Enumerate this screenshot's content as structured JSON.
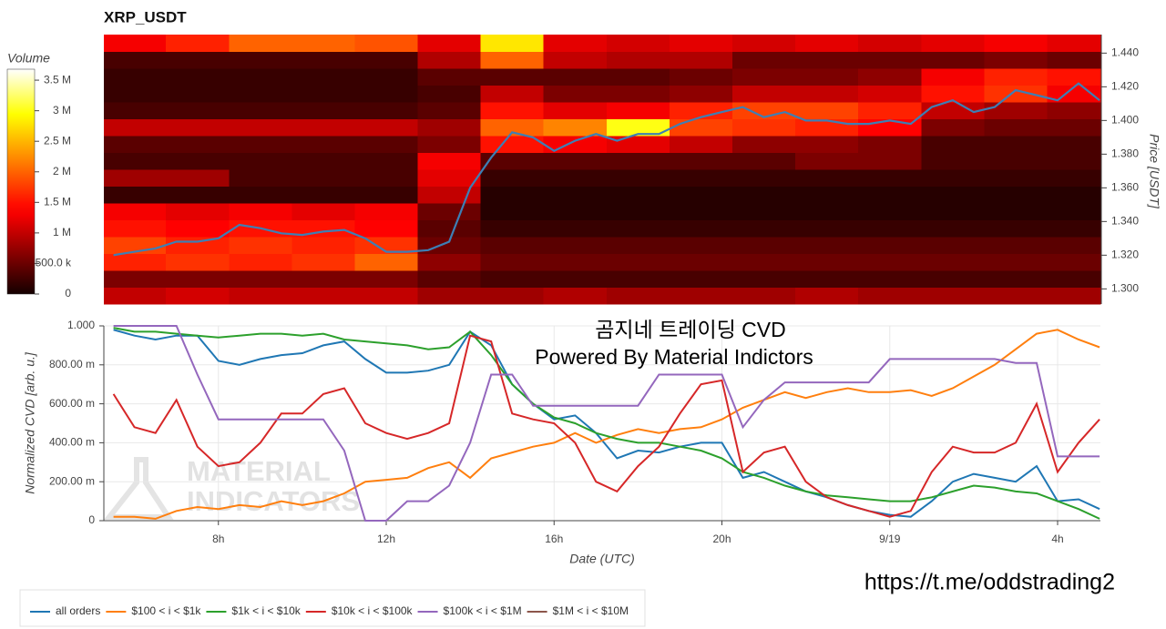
{
  "chart_data": [
    {
      "type": "heatmap",
      "title": "XRP_USDT",
      "ylabel": "Price [USDT]",
      "colormap": "hot",
      "x": [
        6,
        7.5,
        9,
        10.5,
        12,
        13.5,
        15,
        16.5,
        18,
        19.5,
        21,
        22.5,
        24,
        25.5,
        27,
        28.5
      ],
      "y": [
        1.296,
        1.306,
        1.316,
        1.326,
        1.336,
        1.346,
        1.356,
        1.366,
        1.376,
        1.386,
        1.396,
        1.406,
        1.416,
        1.426,
        1.436,
        1.446
      ],
      "z": [
        [
          1000000.0,
          1100000.0,
          1000000.0,
          1000000.0,
          1000000.0,
          800000.0,
          800000.0,
          900000.0,
          800000.0,
          800000.0,
          800000.0,
          900000.0,
          800000.0,
          800000.0,
          800000.0,
          800000.0
        ],
        [
          600000.0,
          600000.0,
          600000.0,
          600000.0,
          600000.0,
          400000.0,
          300000.0,
          300000.0,
          300000.0,
          300000.0,
          300000.0,
          300000.0,
          300000.0,
          300000.0,
          300000.0,
          300000.0
        ],
        [
          1600000.0,
          1700000.0,
          1600000.0,
          1700000.0,
          2000000.0,
          700000.0,
          500000.0,
          500000.0,
          500000.0,
          500000.0,
          500000.0,
          500000.0,
          500000.0,
          500000.0,
          500000.0,
          500000.0
        ],
        [
          1800000.0,
          1600000.0,
          1700000.0,
          1600000.0,
          1700000.0,
          500000.0,
          400000.0,
          400000.0,
          400000.0,
          400000.0,
          400000.0,
          400000.0,
          400000.0,
          400000.0,
          400000.0,
          400000.0
        ],
        [
          1500000.0,
          1400000.0,
          1500000.0,
          1500000.0,
          1400000.0,
          400000.0,
          200000.0,
          200000.0,
          200000.0,
          200000.0,
          200000.0,
          200000.0,
          200000.0,
          200000.0,
          200000.0,
          200000.0
        ],
        [
          1300000.0,
          1200000.0,
          1300000.0,
          1200000.0,
          1300000.0,
          500000.0,
          100000.0,
          100000.0,
          100000.0,
          100000.0,
          100000.0,
          100000.0,
          100000.0,
          100000.0,
          100000.0,
          100000.0
        ],
        [
          200000.0,
          200000.0,
          200000.0,
          200000.0,
          200000.0,
          1000000.0,
          100000.0,
          100000.0,
          100000.0,
          100000.0,
          100000.0,
          100000.0,
          100000.0,
          100000.0,
          100000.0,
          100000.0
        ],
        [
          800000.0,
          800000.0,
          300000.0,
          300000.0,
          300000.0,
          1200000.0,
          200000.0,
          200000.0,
          200000.0,
          200000.0,
          200000.0,
          200000.0,
          200000.0,
          200000.0,
          200000.0,
          200000.0
        ],
        [
          300000.0,
          300000.0,
          300000.0,
          300000.0,
          300000.0,
          1300000.0,
          400000.0,
          400000.0,
          400000.0,
          400000.0,
          400000.0,
          600000.0,
          600000.0,
          300000.0,
          300000.0,
          300000.0
        ],
        [
          400000.0,
          400000.0,
          400000.0,
          400000.0,
          400000.0,
          600000.0,
          1500000.0,
          1300000.0,
          1200000.0,
          1000000.0,
          700000.0,
          700000.0,
          600000.0,
          300000.0,
          300000.0,
          300000.0
        ],
        [
          1000000.0,
          1000000.0,
          1000000.0,
          1000000.0,
          1000000.0,
          800000.0,
          2000000.0,
          2200000.0,
          3000000.0,
          1800000.0,
          1700000.0,
          1600000.0,
          1400000.0,
          600000.0,
          500000.0,
          500000.0
        ],
        [
          300000.0,
          300000.0,
          300000.0,
          300000.0,
          300000.0,
          400000.0,
          1500000.0,
          1200000.0,
          1300000.0,
          1600000.0,
          1800000.0,
          1800000.0,
          1600000.0,
          1000000.0,
          800000.0,
          700000.0
        ],
        [
          200000.0,
          200000.0,
          200000.0,
          200000.0,
          200000.0,
          300000.0,
          1000000.0,
          600000.0,
          600000.0,
          700000.0,
          1000000.0,
          1000000.0,
          1100000.0,
          1500000.0,
          1700000.0,
          1300000.0
        ],
        [
          200000.0,
          200000.0,
          200000.0,
          200000.0,
          200000.0,
          400000.0,
          400000.0,
          400000.0,
          400000.0,
          500000.0,
          600000.0,
          600000.0,
          700000.0,
          1300000.0,
          1600000.0,
          1500000.0
        ],
        [
          300000.0,
          300000.0,
          300000.0,
          300000.0,
          300000.0,
          900000.0,
          2000000.0,
          1000000.0,
          900000.0,
          900000.0,
          500000.0,
          500000.0,
          500000.0,
          500000.0,
          600000.0,
          500000.0
        ],
        [
          1300000.0,
          1600000.0,
          2000000.0,
          2000000.0,
          1900000.0,
          1200000.0,
          2800000.0,
          1200000.0,
          1100000.0,
          1200000.0,
          1100000.0,
          1200000.0,
          1100000.0,
          1200000.0,
          1300000.0,
          1200000.0
        ]
      ],
      "xlim": [
        5.27,
        29.02
      ],
      "ylim": [
        1.291,
        1.451
      ],
      "yticks": [
        {
          "value": 1.3,
          "label": "1.300"
        },
        {
          "value": 1.32,
          "label": "1.320"
        },
        {
          "value": 1.34,
          "label": "1.340"
        },
        {
          "value": 1.36,
          "label": "1.360"
        },
        {
          "value": 1.38,
          "label": "1.380"
        },
        {
          "value": 1.4,
          "label": "1.400"
        },
        {
          "value": 1.42,
          "label": "1.420"
        },
        {
          "value": 1.44,
          "label": "1.440"
        }
      ],
      "colorbar": {
        "label": "Volume",
        "zlim": [
          0,
          3680000
        ],
        "ticks": [
          0,
          {
            "value": 500000,
            "label": "500.0 k"
          },
          {
            "value": 1000000,
            "label": "1 M"
          },
          {
            "value": 1500000,
            "label": "1.5 M"
          },
          {
            "value": 2000000,
            "label": "2 M"
          },
          {
            "value": 2500000,
            "label": "2.5 M"
          },
          {
            "value": 3000000,
            "label": "3 M"
          },
          {
            "value": 3500000,
            "label": "3.5 M"
          }
        ]
      },
      "line": {
        "color": "#3d7fb5",
        "x": [
          5.5,
          6,
          6.5,
          7,
          7.5,
          8,
          8.5,
          9,
          9.5,
          10,
          10.5,
          11,
          11.5,
          12,
          12.5,
          13,
          13.5,
          14,
          14.5,
          15,
          15.5,
          16,
          16.5,
          17,
          17.5,
          18,
          18.5,
          19,
          19.5,
          20,
          20.5,
          21,
          21.5,
          22,
          22.5,
          23,
          23.5,
          24,
          24.5,
          25,
          25.5,
          26,
          26.5,
          27,
          27.5,
          28,
          28.5,
          29
        ],
        "values": [
          1.32,
          1.322,
          1.324,
          1.328,
          1.328,
          1.33,
          1.338,
          1.336,
          1.333,
          1.332,
          1.334,
          1.335,
          1.33,
          1.322,
          1.322,
          1.323,
          1.328,
          1.36,
          1.378,
          1.393,
          1.39,
          1.382,
          1.388,
          1.392,
          1.388,
          1.392,
          1.392,
          1.398,
          1.402,
          1.405,
          1.408,
          1.402,
          1.405,
          1.4,
          1.4,
          1.398,
          1.398,
          1.4,
          1.398,
          1.408,
          1.412,
          1.405,
          1.408,
          1.418,
          1.415,
          1.412,
          1.422,
          1.412
        ]
      }
    },
    {
      "type": "line",
      "xlabel": "Date (UTC)",
      "ylabel": "Normalized CVD [arb. u.]",
      "grid": true,
      "legend": "bottom",
      "annotations": [
        "곰지네 트레이딩 CVD",
        "Powered By Material Indictors"
      ],
      "x": [
        5.5,
        6,
        6.5,
        7,
        7.5,
        8,
        8.5,
        9,
        9.5,
        10,
        10.5,
        11,
        11.5,
        12,
        12.5,
        13,
        13.5,
        14,
        14.5,
        15,
        15.5,
        16,
        16.5,
        17,
        17.5,
        18,
        18.5,
        19,
        19.5,
        20,
        20.5,
        21,
        21.5,
        22,
        22.5,
        23,
        23.5,
        24,
        24.5,
        25,
        25.5,
        26,
        26.5,
        27,
        27.5,
        28,
        28.5,
        29
      ],
      "xlim": [
        5.27,
        29.02
      ],
      "ylim": [
        0,
        1
      ],
      "xticks": [
        {
          "value": 8,
          "label": "8h"
        },
        {
          "value": 12,
          "label": "12h"
        },
        {
          "value": 16,
          "label": "16h"
        },
        {
          "value": 20,
          "label": "20h"
        },
        {
          "value": 24,
          "label": "9/19"
        },
        {
          "value": 28,
          "label": "4h"
        }
      ],
      "yticks": [
        0,
        {
          "value": 0.2,
          "label": "200.00 m"
        },
        {
          "value": 0.4,
          "label": "400.00 m"
        },
        {
          "value": 0.6,
          "label": "600.00 m"
        },
        {
          "value": 0.8,
          "label": "800.00 m"
        },
        {
          "value": 1,
          "label": "1.000"
        }
      ],
      "series": [
        {
          "name": "all orders",
          "color": "#1f77b4",
          "values": [
            0.98,
            0.95,
            0.93,
            0.95,
            0.95,
            0.82,
            0.8,
            0.83,
            0.85,
            0.86,
            0.9,
            0.92,
            0.83,
            0.76,
            0.76,
            0.77,
            0.8,
            0.97,
            0.9,
            0.7,
            0.6,
            0.52,
            0.54,
            0.45,
            0.32,
            0.36,
            0.35,
            0.38,
            0.4,
            0.4,
            0.22,
            0.25,
            0.2,
            0.15,
            0.12,
            0.08,
            0.05,
            0.03,
            0.02,
            0.1,
            0.2,
            0.24,
            0.22,
            0.2,
            0.28,
            0.1,
            0.11,
            0.06
          ]
        },
        {
          "name": "$100 < i < $1k",
          "color": "#ff7f0e",
          "values": [
            0.02,
            0.02,
            0.01,
            0.05,
            0.07,
            0.06,
            0.08,
            0.07,
            0.1,
            0.08,
            0.1,
            0.14,
            0.2,
            0.21,
            0.22,
            0.27,
            0.3,
            0.22,
            0.32,
            0.35,
            0.38,
            0.4,
            0.45,
            0.4,
            0.44,
            0.47,
            0.45,
            0.47,
            0.48,
            0.52,
            0.58,
            0.62,
            0.66,
            0.63,
            0.66,
            0.68,
            0.66,
            0.66,
            0.67,
            0.64,
            0.68,
            0.74,
            0.8,
            0.88,
            0.96,
            0.98,
            0.93,
            0.89
          ]
        },
        {
          "name": "$1k < i < $10k",
          "color": "#2ca02c",
          "values": [
            0.99,
            0.97,
            0.97,
            0.96,
            0.95,
            0.94,
            0.95,
            0.96,
            0.96,
            0.95,
            0.96,
            0.93,
            0.92,
            0.91,
            0.9,
            0.88,
            0.89,
            0.97,
            0.85,
            0.7,
            0.6,
            0.53,
            0.5,
            0.45,
            0.42,
            0.4,
            0.4,
            0.38,
            0.36,
            0.32,
            0.25,
            0.22,
            0.18,
            0.15,
            0.13,
            0.12,
            0.11,
            0.1,
            0.1,
            0.12,
            0.15,
            0.18,
            0.17,
            0.15,
            0.14,
            0.1,
            0.06,
            0.01
          ]
        },
        {
          "name": "$10k < i < $100k",
          "color": "#d62728",
          "values": [
            0.65,
            0.48,
            0.45,
            0.62,
            0.38,
            0.28,
            0.3,
            0.4,
            0.55,
            0.55,
            0.65,
            0.68,
            0.5,
            0.45,
            0.42,
            0.45,
            0.5,
            0.95,
            0.92,
            0.55,
            0.52,
            0.5,
            0.4,
            0.2,
            0.15,
            0.28,
            0.38,
            0.55,
            0.7,
            0.72,
            0.25,
            0.35,
            0.38,
            0.2,
            0.12,
            0.08,
            0.05,
            0.02,
            0.05,
            0.25,
            0.38,
            0.35,
            0.35,
            0.4,
            0.6,
            0.25,
            0.4,
            0.52
          ]
        },
        {
          "name": "$100k < i < $1M",
          "color": "#9467bd",
          "values": [
            1.0,
            1.0,
            1.0,
            1.0,
            0.75,
            0.52,
            0.52,
            0.52,
            0.52,
            0.52,
            0.52,
            0.36,
            0,
            0,
            0.1,
            0.1,
            0.18,
            0.4,
            0.75,
            0.75,
            0.59,
            0.59,
            0.59,
            0.59,
            0.59,
            0.59,
            0.75,
            0.75,
            0.75,
            0.75,
            0.48,
            0.62,
            0.71,
            0.71,
            0.71,
            0.71,
            0.71,
            0.83,
            0.83,
            0.83,
            0.83,
            0.83,
            0.83,
            0.81,
            0.81,
            0.33,
            0.33,
            0.33
          ]
        },
        {
          "name": "$1M < i < $10M",
          "color": "#8c564b",
          "values": [
            null,
            null,
            null,
            null,
            null,
            null,
            null,
            null,
            null,
            null,
            null,
            null,
            null,
            null,
            null,
            null,
            null,
            null,
            null,
            null,
            null,
            null,
            null,
            null,
            null,
            null,
            null,
            null,
            null,
            null,
            null,
            null,
            null,
            null,
            null,
            null,
            null,
            null,
            null,
            null,
            null,
            null,
            null,
            null,
            null,
            null,
            null,
            null
          ]
        }
      ]
    }
  ],
  "watermark": [
    "MATERIAL",
    "INDICATORS"
  ],
  "link": "https://t.me/oddstrading2"
}
